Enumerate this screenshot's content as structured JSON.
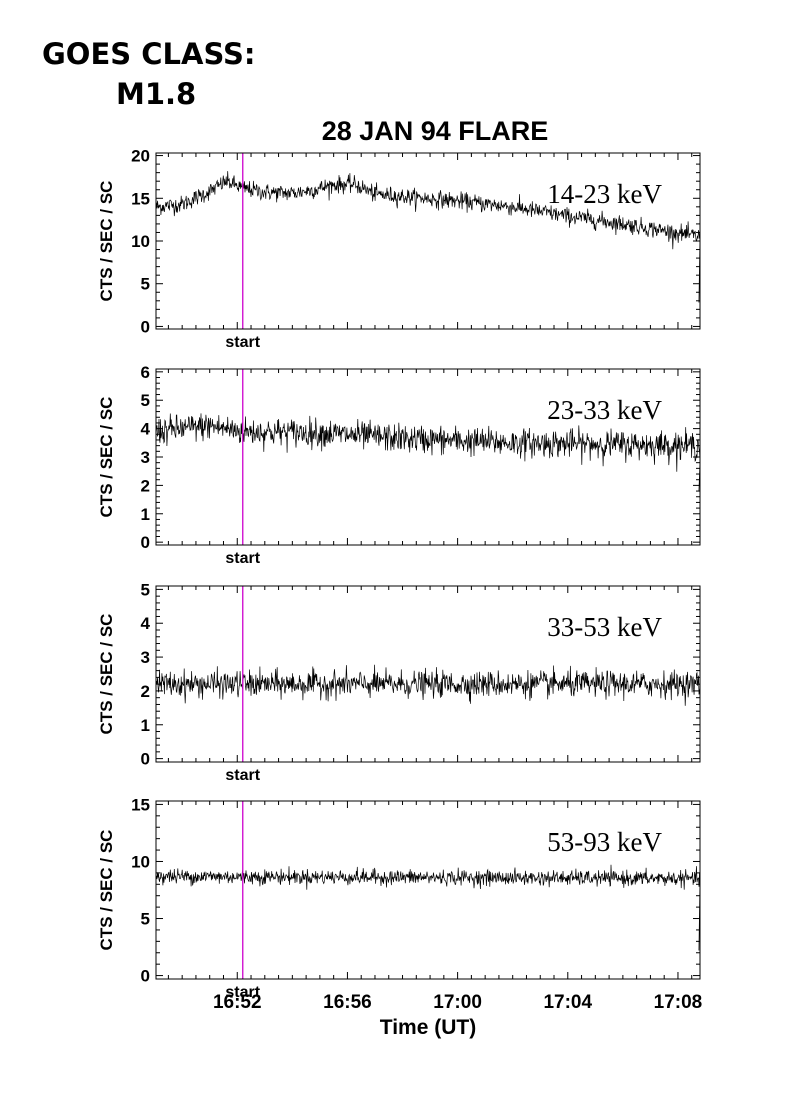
{
  "header": {
    "goes_label": "GOES CLASS:",
    "goes_value": "M1.8"
  },
  "chart_data": {
    "type": "line",
    "title": "28 JAN 94 FLARE",
    "xlabel": "Time (UT)",
    "x_unit": "minutes after 16:48 UT",
    "xlim": [
      1.05,
      20.8
    ],
    "xticks": [
      {
        "value": 4,
        "label": "16:52"
      },
      {
        "value": 8,
        "label": "16:56"
      },
      {
        "value": 12,
        "label": "17:00"
      },
      {
        "value": 16,
        "label": "17:04"
      },
      {
        "value": 20,
        "label": "17:08"
      }
    ],
    "marker": {
      "label": "start",
      "time": "16:52:12",
      "value": 4.2,
      "color": "#cc00cc"
    },
    "line_color": "#000000",
    "panels": [
      {
        "band": "14-23 keV",
        "ylabel": "CTS / SEC / SC",
        "ylim": [
          -0.3,
          20.3
        ],
        "yticks": [
          0,
          5,
          10,
          15,
          20
        ],
        "noise": 0.9,
        "final_drop": 2.8,
        "series": [
          [
            1.05,
            14.0
          ],
          [
            2.0,
            14.3
          ],
          [
            3.0,
            15.8
          ],
          [
            3.6,
            17.0
          ],
          [
            4.2,
            16.2
          ],
          [
            5.0,
            15.7
          ],
          [
            6.0,
            15.6
          ],
          [
            6.8,
            16.0
          ],
          [
            7.5,
            16.6
          ],
          [
            8.3,
            16.6
          ],
          [
            9.0,
            15.5
          ],
          [
            10.0,
            15.2
          ],
          [
            12.0,
            14.7
          ],
          [
            14.0,
            14.0
          ],
          [
            16.0,
            12.9
          ],
          [
            18.0,
            12.0
          ],
          [
            20.8,
            10.5
          ]
        ]
      },
      {
        "band": "23-33 keV",
        "ylabel": "CTS / SEC / SC",
        "ylim": [
          -0.1,
          6.1
        ],
        "yticks": [
          0,
          1,
          2,
          3,
          4,
          5,
          6
        ],
        "noise": 0.45,
        "final_drop": 1.8,
        "series": [
          [
            1.05,
            3.9
          ],
          [
            3.0,
            4.1
          ],
          [
            4.2,
            3.9
          ],
          [
            7.0,
            3.85
          ],
          [
            10.0,
            3.65
          ],
          [
            14.0,
            3.5
          ],
          [
            20.8,
            3.4
          ]
        ]
      },
      {
        "band": "33-53 keV",
        "ylabel": "CTS / SEC / SC",
        "ylim": [
          -0.1,
          5.1
        ],
        "yticks": [
          0,
          1,
          2,
          3,
          4,
          5
        ],
        "noise": 0.35,
        "final_drop": null,
        "series": [
          [
            1.05,
            2.2
          ],
          [
            20.8,
            2.2
          ]
        ]
      },
      {
        "band": "53-93 keV",
        "ylabel": "CTS / SEC / SC",
        "ylim": [
          -0.3,
          15.3
        ],
        "yticks": [
          0,
          5,
          10,
          15
        ],
        "noise": 0.6,
        "final_drop": 2.2,
        "series": [
          [
            1.05,
            8.7
          ],
          [
            20.8,
            8.5
          ]
        ]
      }
    ]
  }
}
